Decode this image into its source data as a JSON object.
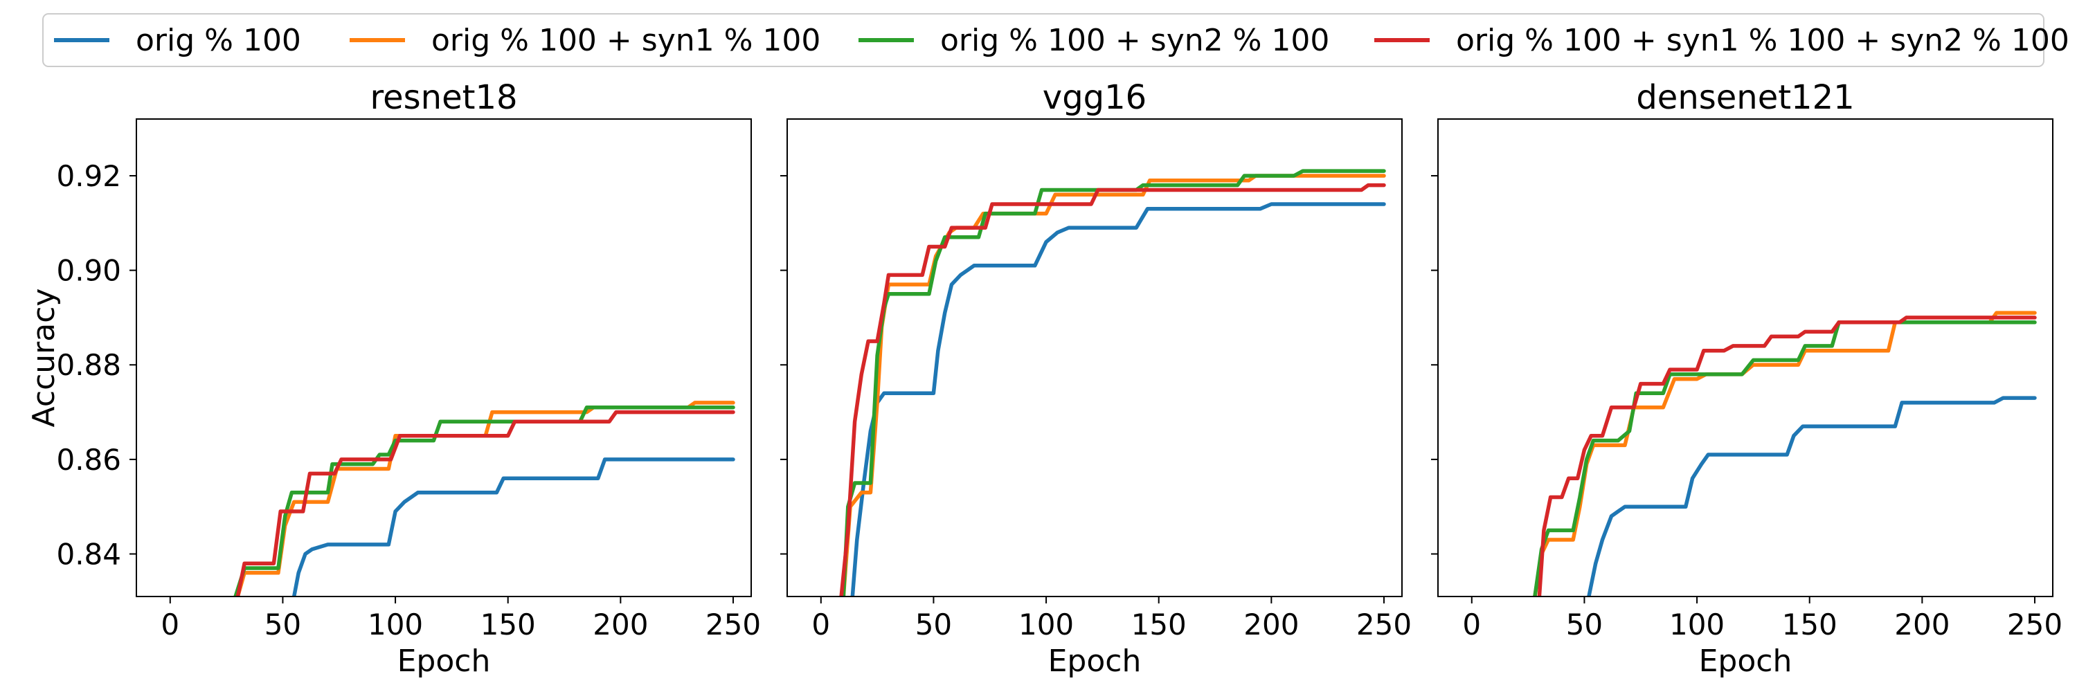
{
  "legend": {
    "placement": "top",
    "entries": [
      {
        "label": "orig % 100",
        "color": "#1f77b4"
      },
      {
        "label": "orig % 100 + syn1 % 100",
        "color": "#ff7f0e"
      },
      {
        "label": "orig % 100 + syn2 % 100",
        "color": "#2ca02c"
      },
      {
        "label": "orig % 100 + syn1 % 100 + syn2 % 100",
        "color": "#d62728"
      }
    ]
  },
  "chart_data": [
    {
      "type": "line",
      "title": "resnet18",
      "xlabel": "Epoch",
      "ylabel": "Accuracy",
      "xlim": [
        -15,
        258
      ],
      "ylim": [
        0.831,
        0.932
      ],
      "xticks": [
        0,
        50,
        100,
        150,
        200,
        250
      ],
      "yticks": [
        0.84,
        0.86,
        0.88,
        0.9,
        0.92
      ],
      "grid": false,
      "series": [
        {
          "name": "orig % 100",
          "color": "#1f77b4",
          "x": [
            55,
            57,
            60,
            63,
            70,
            97,
            100,
            104,
            110,
            145,
            148,
            190,
            193,
            250
          ],
          "y": [
            0.831,
            0.836,
            0.84,
            0.841,
            0.842,
            0.842,
            0.849,
            0.851,
            0.853,
            0.853,
            0.856,
            0.856,
            0.86,
            0.86
          ]
        },
        {
          "name": "orig % 100 + syn1 % 100",
          "color": "#ff7f0e",
          "x": [
            30,
            33,
            48,
            51,
            55,
            70,
            74,
            97,
            100,
            140,
            143,
            185,
            188,
            230,
            233,
            250
          ],
          "y": [
            0.831,
            0.836,
            0.836,
            0.846,
            0.851,
            0.851,
            0.858,
            0.858,
            0.865,
            0.865,
            0.87,
            0.87,
            0.871,
            0.871,
            0.872,
            0.872
          ]
        },
        {
          "name": "orig % 100 + syn2 % 100",
          "color": "#2ca02c",
          "x": [
            29,
            31,
            33,
            48,
            51,
            54,
            70,
            72,
            90,
            93,
            97,
            100,
            117,
            120,
            182,
            185,
            250
          ],
          "y": [
            0.831,
            0.834,
            0.837,
            0.837,
            0.848,
            0.853,
            0.853,
            0.859,
            0.859,
            0.861,
            0.861,
            0.864,
            0.864,
            0.868,
            0.868,
            0.871,
            0.871
          ]
        },
        {
          "name": "orig % 100 + syn1 % 100 + syn2 % 100",
          "color": "#d62728",
          "x": [
            30,
            33,
            46,
            49,
            59,
            62,
            73,
            76,
            98,
            102,
            150,
            153,
            195,
            198,
            250
          ],
          "y": [
            0.831,
            0.838,
            0.838,
            0.849,
            0.849,
            0.857,
            0.857,
            0.86,
            0.86,
            0.865,
            0.865,
            0.868,
            0.868,
            0.87,
            0.87
          ]
        }
      ]
    },
    {
      "type": "line",
      "title": "vgg16",
      "xlabel": "Epoch",
      "ylabel": "",
      "xlim": [
        -15,
        258
      ],
      "ylim": [
        0.831,
        0.932
      ],
      "xticks": [
        0,
        50,
        100,
        150,
        200,
        250
      ],
      "yticks": [
        0.84,
        0.86,
        0.88,
        0.9,
        0.92
      ],
      "grid": false,
      "series": [
        {
          "name": "orig % 100",
          "color": "#1f77b4",
          "x": [
            14,
            16,
            19,
            22,
            25,
            28,
            50,
            52,
            55,
            58,
            62,
            68,
            95,
            100,
            105,
            110,
            140,
            145,
            195,
            200,
            240,
            250
          ],
          "y": [
            0.831,
            0.843,
            0.855,
            0.866,
            0.872,
            0.874,
            0.874,
            0.883,
            0.891,
            0.897,
            0.899,
            0.901,
            0.901,
            0.906,
            0.908,
            0.909,
            0.909,
            0.913,
            0.913,
            0.914,
            0.914,
            0.914
          ]
        },
        {
          "name": "orig % 100 + syn1 % 100",
          "color": "#ff7f0e",
          "x": [
            10,
            13,
            18,
            22,
            25,
            27,
            30,
            48,
            51,
            57,
            60,
            68,
            72,
            100,
            104,
            143,
            146,
            190,
            193,
            230,
            250
          ],
          "y": [
            0.831,
            0.85,
            0.853,
            0.853,
            0.872,
            0.888,
            0.897,
            0.897,
            0.903,
            0.908,
            0.909,
            0.909,
            0.912,
            0.912,
            0.916,
            0.916,
            0.919,
            0.919,
            0.92,
            0.92,
            0.92
          ]
        },
        {
          "name": "orig % 100 + syn2 % 100",
          "color": "#2ca02c",
          "x": [
            10,
            12,
            15,
            22,
            25,
            28,
            30,
            48,
            51,
            55,
            58,
            70,
            73,
            95,
            98,
            140,
            143,
            185,
            188,
            210,
            214,
            250
          ],
          "y": [
            0.831,
            0.85,
            0.855,
            0.855,
            0.882,
            0.892,
            0.895,
            0.895,
            0.902,
            0.907,
            0.907,
            0.907,
            0.912,
            0.912,
            0.917,
            0.917,
            0.918,
            0.918,
            0.92,
            0.92,
            0.921,
            0.921
          ]
        },
        {
          "name": "orig % 100 + syn1 % 100 + syn2 % 100",
          "color": "#d62728",
          "x": [
            9,
            12,
            15,
            18,
            21,
            25,
            28,
            30,
            45,
            48,
            55,
            58,
            73,
            76,
            120,
            123,
            240,
            243,
            250
          ],
          "y": [
            0.831,
            0.845,
            0.868,
            0.878,
            0.885,
            0.885,
            0.893,
            0.899,
            0.899,
            0.905,
            0.905,
            0.909,
            0.909,
            0.914,
            0.914,
            0.917,
            0.917,
            0.918,
            0.918
          ]
        }
      ]
    },
    {
      "type": "line",
      "title": "densenet121",
      "xlabel": "Epoch",
      "ylabel": "",
      "xlim": [
        -15,
        258
      ],
      "ylim": [
        0.831,
        0.932
      ],
      "xticks": [
        0,
        50,
        100,
        150,
        200,
        250
      ],
      "yticks": [
        0.84,
        0.86,
        0.88,
        0.9,
        0.92
      ],
      "grid": false,
      "series": [
        {
          "name": "orig % 100",
          "color": "#1f77b4",
          "x": [
            52,
            55,
            58,
            62,
            65,
            68,
            95,
            98,
            102,
            105,
            140,
            143,
            147,
            150,
            188,
            191,
            232,
            236,
            250
          ],
          "y": [
            0.831,
            0.838,
            0.843,
            0.848,
            0.849,
            0.85,
            0.85,
            0.856,
            0.859,
            0.861,
            0.861,
            0.865,
            0.867,
            0.867,
            0.867,
            0.872,
            0.872,
            0.873,
            0.873
          ]
        },
        {
          "name": "orig % 100 + syn1 % 100",
          "color": "#ff7f0e",
          "x": [
            28,
            31,
            34,
            45,
            48,
            51,
            54,
            68,
            72,
            85,
            90,
            100,
            104,
            120,
            125,
            145,
            148,
            185,
            188,
            230,
            233,
            250
          ],
          "y": [
            0.831,
            0.84,
            0.843,
            0.843,
            0.85,
            0.859,
            0.863,
            0.863,
            0.871,
            0.871,
            0.877,
            0.877,
            0.878,
            0.878,
            0.88,
            0.88,
            0.883,
            0.883,
            0.889,
            0.889,
            0.891,
            0.891
          ]
        },
        {
          "name": "orig % 100 + syn2 % 100",
          "color": "#2ca02c",
          "x": [
            28,
            31,
            34,
            45,
            48,
            51,
            54,
            65,
            70,
            73,
            85,
            88,
            100,
            105,
            120,
            125,
            145,
            148,
            160,
            163,
            250
          ],
          "y": [
            0.831,
            0.841,
            0.845,
            0.845,
            0.852,
            0.86,
            0.864,
            0.864,
            0.866,
            0.874,
            0.874,
            0.878,
            0.878,
            0.878,
            0.878,
            0.881,
            0.881,
            0.884,
            0.884,
            0.889,
            0.889
          ]
        },
        {
          "name": "orig % 100 + syn1 % 100 + syn2 % 100",
          "color": "#d62728",
          "x": [
            30,
            32,
            35,
            40,
            43,
            47,
            50,
            53,
            58,
            62,
            65,
            72,
            75,
            85,
            88,
            100,
            103,
            112,
            116,
            130,
            133,
            145,
            148,
            160,
            163,
            190,
            193,
            250
          ],
          "y": [
            0.831,
            0.845,
            0.852,
            0.852,
            0.856,
            0.856,
            0.862,
            0.865,
            0.865,
            0.871,
            0.871,
            0.871,
            0.876,
            0.876,
            0.879,
            0.879,
            0.883,
            0.883,
            0.884,
            0.884,
            0.886,
            0.886,
            0.887,
            0.887,
            0.889,
            0.889,
            0.89,
            0.89
          ]
        }
      ]
    }
  ]
}
